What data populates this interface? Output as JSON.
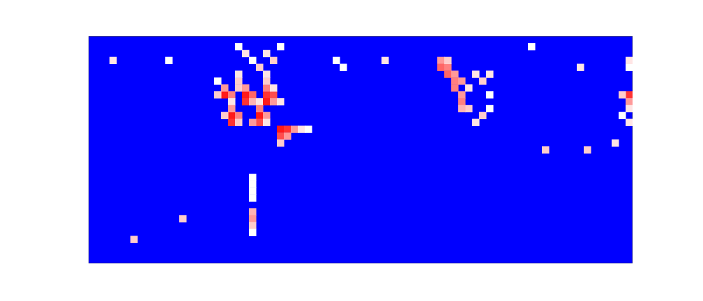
{
  "chart_data": {
    "type": "heatmap",
    "xlim": [
      0,
      78
    ],
    "ylim": [
      0,
      33
    ],
    "tick_labels": false,
    "zlim": [
      0,
      1
    ],
    "cells": [
      [
        19,
        24,
        0.95
      ],
      [
        19,
        25,
        0.7
      ],
      [
        18,
        24,
        0.6
      ],
      [
        20,
        24,
        0.75
      ],
      [
        20,
        23,
        0.55
      ],
      [
        18,
        26,
        0.5
      ],
      [
        21,
        25,
        0.6
      ],
      [
        21,
        26,
        0.6
      ],
      [
        21,
        27,
        0.55
      ],
      [
        22,
        24,
        0.95
      ],
      [
        22,
        23,
        0.9
      ],
      [
        23,
        24,
        0.8
      ],
      [
        23,
        23,
        0.65
      ],
      [
        24,
        23,
        0.55
      ],
      [
        22,
        25,
        0.7
      ],
      [
        25,
        24,
        0.9
      ],
      [
        25,
        23,
        0.95
      ],
      [
        26,
        24,
        0.85
      ],
      [
        26,
        23,
        0.7
      ],
      [
        27,
        23,
        0.55
      ],
      [
        25,
        25,
        0.75
      ],
      [
        25,
        26,
        0.6
      ],
      [
        26,
        25,
        0.55
      ],
      [
        20,
        21,
        0.95
      ],
      [
        20,
        20,
        0.9
      ],
      [
        21,
        21,
        0.75
      ],
      [
        21,
        20,
        0.6
      ],
      [
        19,
        21,
        0.6
      ],
      [
        20,
        22,
        0.7
      ],
      [
        24,
        21,
        0.95
      ],
      [
        24,
        20,
        0.85
      ],
      [
        23,
        20,
        0.7
      ],
      [
        25,
        21,
        0.7
      ],
      [
        25,
        20,
        0.55
      ],
      [
        24,
        22,
        0.75
      ],
      [
        27,
        19,
        0.95
      ],
      [
        27,
        18,
        0.85
      ],
      [
        28,
        19,
        0.9
      ],
      [
        28,
        18,
        0.7
      ],
      [
        29,
        19,
        0.7
      ],
      [
        30,
        19,
        0.55
      ],
      [
        31,
        19,
        0.5
      ],
      [
        27,
        17,
        0.6
      ],
      [
        22,
        30,
        0.55
      ],
      [
        23,
        29,
        0.5
      ],
      [
        24,
        28,
        0.6
      ],
      [
        25,
        30,
        0.55
      ],
      [
        26,
        29,
        0.6
      ],
      [
        27,
        31,
        0.5
      ],
      [
        25,
        27,
        0.55
      ],
      [
        21,
        31,
        0.5
      ],
      [
        35,
        29,
        0.5
      ],
      [
        36,
        28,
        0.5
      ],
      [
        23,
        12,
        0.5
      ],
      [
        23,
        11,
        0.5
      ],
      [
        23,
        10,
        0.5
      ],
      [
        23,
        9,
        0.5
      ],
      [
        23,
        7,
        0.65
      ],
      [
        23,
        6,
        0.7
      ],
      [
        23,
        5,
        0.6
      ],
      [
        23,
        4,
        0.5
      ],
      [
        3,
        29,
        0.55
      ],
      [
        6,
        3,
        0.6
      ],
      [
        13,
        6,
        0.6
      ],
      [
        11,
        29,
        0.5
      ],
      [
        42,
        29,
        0.55
      ],
      [
        70,
        28,
        0.55
      ],
      [
        65,
        16,
        0.6
      ],
      [
        71,
        16,
        0.6
      ],
      [
        75,
        17,
        0.55
      ],
      [
        63,
        31,
        0.5
      ],
      [
        50,
        29,
        0.7
      ],
      [
        50,
        28,
        0.8
      ],
      [
        51,
        28,
        0.75
      ],
      [
        51,
        27,
        0.8
      ],
      [
        52,
        27,
        0.7
      ],
      [
        52,
        26,
        0.75
      ],
      [
        53,
        26,
        0.7
      ],
      [
        52,
        25,
        0.75
      ],
      [
        53,
        24,
        0.7
      ],
      [
        53,
        23,
        0.75
      ],
      [
        54,
        22,
        0.6
      ],
      [
        51,
        29,
        0.6
      ],
      [
        54,
        25,
        0.55
      ],
      [
        55,
        27,
        0.55
      ],
      [
        56,
        26,
        0.6
      ],
      [
        57,
        27,
        0.55
      ],
      [
        57,
        24,
        0.5
      ],
      [
        56,
        21,
        0.6
      ],
      [
        55,
        20,
        0.55
      ],
      [
        57,
        22,
        0.5
      ],
      [
        53,
        22,
        0.65
      ],
      [
        77,
        24,
        0.9
      ],
      [
        77,
        23,
        0.7
      ],
      [
        77,
        22,
        0.55
      ],
      [
        77,
        28,
        0.5
      ],
      [
        77,
        29,
        0.55
      ],
      [
        76,
        24,
        0.6
      ],
      [
        76,
        21,
        0.5
      ],
      [
        77,
        20,
        0.55
      ]
    ]
  }
}
